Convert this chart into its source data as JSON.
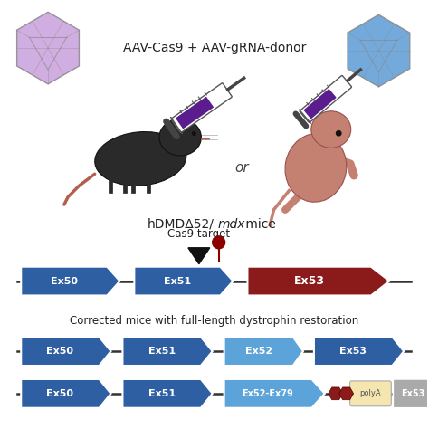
{
  "title": "AAV-Cas9 + AAV-gRNA-donor",
  "label_cas9": "Cas9 target",
  "label_or": "or",
  "label_polya": "polyA",
  "label_corrected": "Corrected mice with full-length dystrophin restoration",
  "color_medium_blue": "#2e5fa3",
  "color_light_blue": "#5ba3d9",
  "color_red_exon": "#8b1a1a",
  "color_gray_exon": "#aaaaaa",
  "color_polya_fill": "#f5e6b0",
  "color_aav_purple": "#c9a0dc",
  "color_aav_blue": "#5b9bd5",
  "bg_color": "#ffffff",
  "mouse_dark": "#2a2a2a",
  "mouse_pink": "#c07070",
  "mouse_ear": "#b06050",
  "baby_body": "#c48070",
  "syringe_fill": "#5b1d8e",
  "needle_color": "#555555"
}
